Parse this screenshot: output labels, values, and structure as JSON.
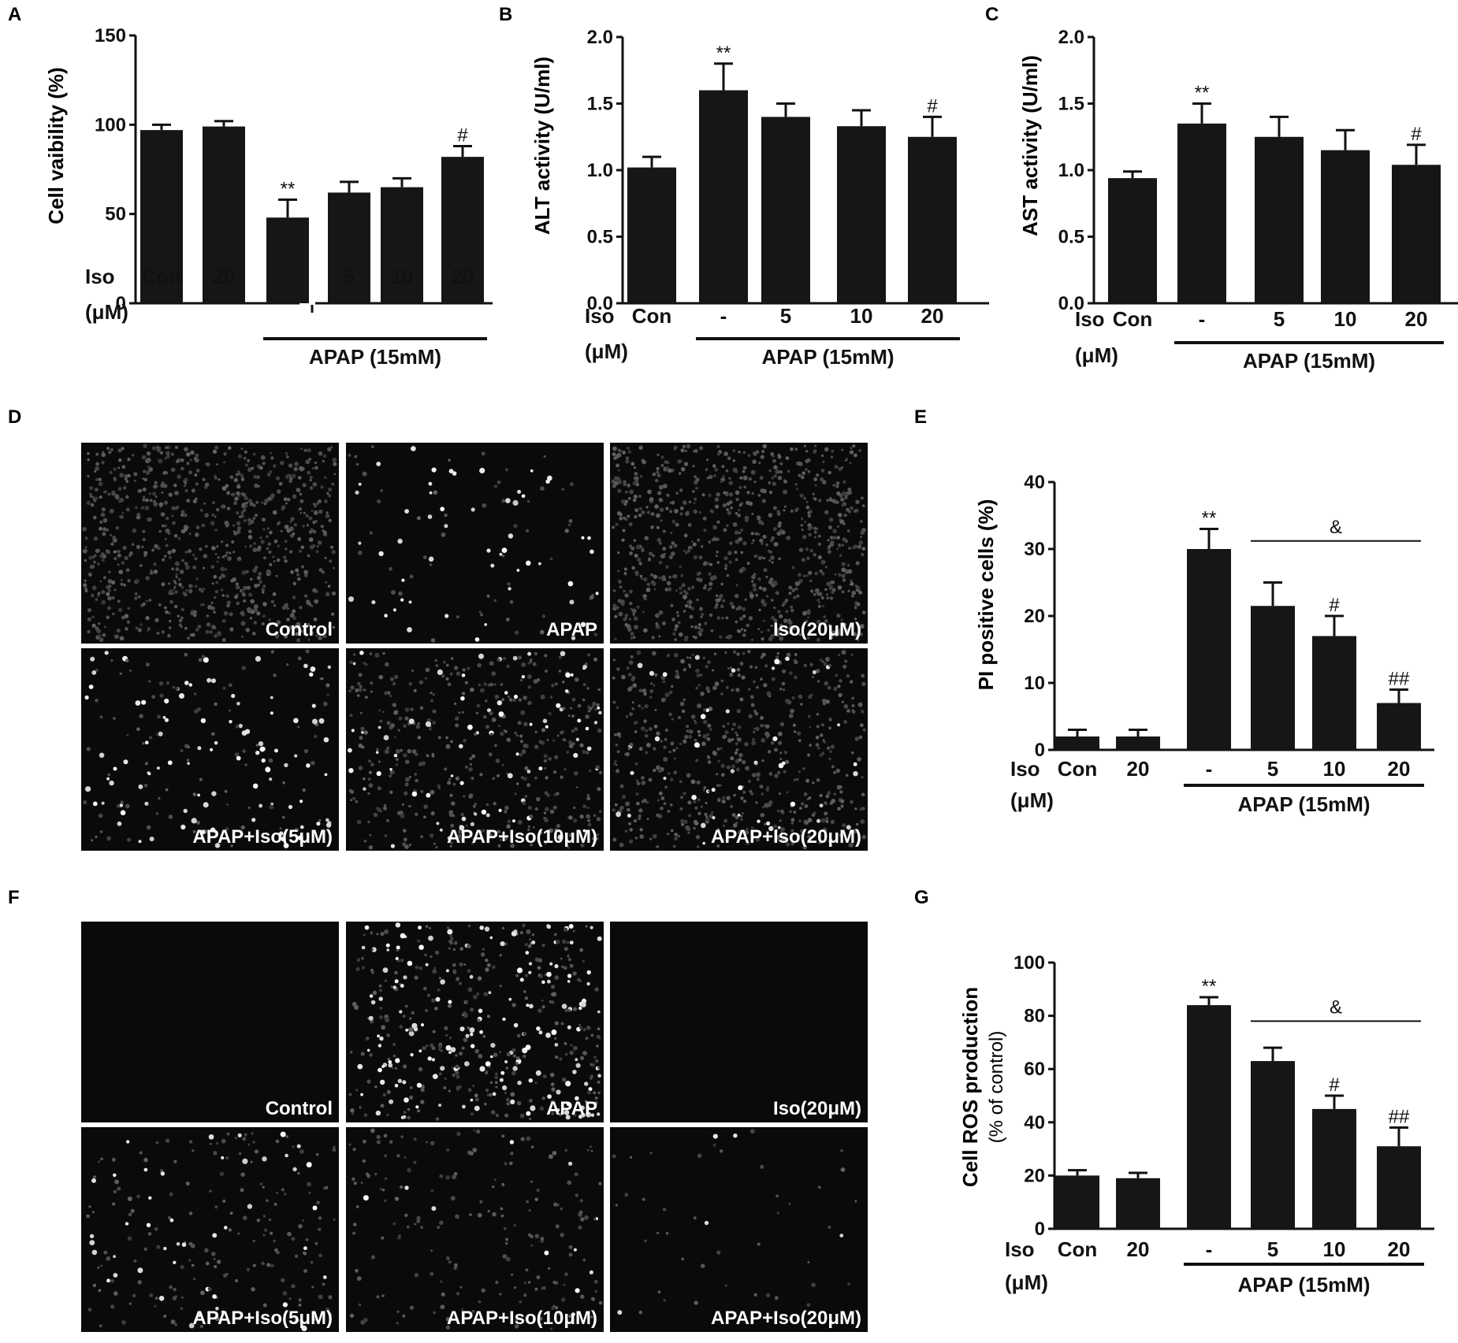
{
  "chart_data": [
    {
      "panel_letter": "A",
      "type": "bar",
      "ylabel": "Cell vaibility (%)",
      "ylim": [
        0,
        150
      ],
      "yticks": [
        "0",
        "50",
        "100",
        "150"
      ],
      "xrow_header": [
        "Iso",
        "(μM)"
      ],
      "categories": [
        "Con",
        "20",
        "-",
        "5",
        "10",
        "20"
      ],
      "values": [
        97,
        99,
        48,
        62,
        65,
        82
      ],
      "errors": [
        3,
        3,
        10,
        6,
        5,
        6
      ],
      "annotations": [
        "",
        "",
        "**",
        "",
        "",
        "#"
      ],
      "group_label": "APAP (15mM)",
      "group_span": [
        2,
        5
      ]
    },
    {
      "panel_letter": "B",
      "type": "bar",
      "ylabel": "ALT activity (U/ml)",
      "ylim": [
        0,
        2.0
      ],
      "yticks": [
        "0.0",
        "0.5",
        "1.0",
        "1.5",
        "2.0"
      ],
      "xrow_header": [
        "Iso",
        "(μM)"
      ],
      "categories": [
        "Con",
        "-",
        "5",
        "10",
        "20"
      ],
      "values": [
        1.02,
        1.6,
        1.4,
        1.33,
        1.25
      ],
      "errors": [
        0.08,
        0.2,
        0.1,
        0.12,
        0.15
      ],
      "annotations": [
        "",
        "**",
        "",
        "",
        "#"
      ],
      "group_label": "APAP (15mM)",
      "group_span": [
        1,
        4
      ]
    },
    {
      "panel_letter": "C",
      "type": "bar",
      "ylabel": "AST activity (U/ml)",
      "ylim": [
        0,
        2.0
      ],
      "yticks": [
        "0.0",
        "0.5",
        "1.0",
        "1.5",
        "2.0"
      ],
      "xrow_header": [
        "Iso",
        "(μM)"
      ],
      "categories": [
        "Con",
        "-",
        "5",
        "10",
        "20"
      ],
      "values": [
        0.94,
        1.35,
        1.25,
        1.15,
        1.04
      ],
      "errors": [
        0.05,
        0.15,
        0.15,
        0.15,
        0.15
      ],
      "annotations": [
        "",
        "**",
        "",
        "",
        "#"
      ],
      "group_label": "APAP (15mM)",
      "group_span": [
        1,
        4
      ]
    },
    {
      "panel_letter": "E",
      "type": "bar",
      "ylabel": "PI positive cells (%)",
      "ylim": [
        0,
        40
      ],
      "yticks": [
        "0",
        "10",
        "20",
        "30",
        "40"
      ],
      "xrow_header": [
        "Iso",
        "(μM)"
      ],
      "categories": [
        "Con",
        "20",
        "-",
        "5",
        "10",
        "20"
      ],
      "values": [
        2,
        2,
        30,
        21.5,
        17,
        7
      ],
      "errors": [
        1,
        1,
        3,
        3.5,
        3,
        2
      ],
      "annotations": [
        "",
        "",
        "**",
        "",
        "#",
        "##"
      ],
      "bracket": {
        "from": 3,
        "to": 5,
        "label": "&"
      },
      "group_label": "APAP (15mM)",
      "group_span": [
        2,
        5
      ]
    },
    {
      "panel_letter": "G",
      "type": "bar",
      "ylabel": "Cell ROS production",
      "ylabel2": "(% of control)",
      "ylim": [
        0,
        100
      ],
      "yticks": [
        "0",
        "20",
        "40",
        "60",
        "80",
        "100"
      ],
      "xrow_header": [
        "Iso",
        "(μM)"
      ],
      "categories": [
        "Con",
        "20",
        "-",
        "5",
        "10",
        "20"
      ],
      "values": [
        20,
        19,
        84,
        63,
        45,
        31
      ],
      "errors": [
        2,
        2,
        3,
        5,
        5,
        7
      ],
      "annotations": [
        "",
        "",
        "**",
        "",
        "#",
        "##"
      ],
      "bracket": {
        "from": 3,
        "to": 5,
        "label": "&"
      },
      "group_label": "APAP (15mM)",
      "group_span": [
        2,
        5
      ]
    }
  ],
  "micrograph_panels": [
    {
      "panel_letter": "D",
      "image_labels": [
        "Control",
        "APAP",
        "Iso(20μM)",
        "APAP+Iso(5μM)",
        "APAP+Iso(10μM)",
        "APAP+Iso(20μM)"
      ],
      "cell_density": [
        0.9,
        0.12,
        0.95,
        0.22,
        0.55,
        0.7
      ],
      "bright_fraction": [
        0.0,
        0.5,
        0.0,
        0.45,
        0.15,
        0.06
      ]
    },
    {
      "panel_letter": "F",
      "image_labels": [
        "Control",
        "APAP",
        "Iso(20μM)",
        "APAP+Iso(5μM)",
        "APAP+Iso(10μM)",
        "APAP+Iso(20μM)"
      ],
      "cell_density": [
        0.0,
        0.55,
        0.0,
        0.25,
        0.22,
        0.05
      ],
      "bright_fraction": [
        0.0,
        0.35,
        0.0,
        0.2,
        0.05,
        0.1
      ]
    }
  ]
}
